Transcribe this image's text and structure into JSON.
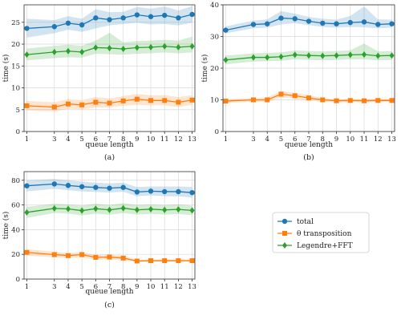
{
  "colors": {
    "total": "#1f77b4",
    "theta": "#ff7f0e",
    "legendre": "#2ca02c",
    "grid": "#d9d9d9",
    "frame": "#333333"
  },
  "legend": {
    "items": [
      {
        "key": "total",
        "label": "total",
        "marker": "circle"
      },
      {
        "key": "theta",
        "label": "θ transposition",
        "marker": "square"
      },
      {
        "key": "legendre",
        "label": "Legendre+FFT",
        "marker": "diamond"
      }
    ]
  },
  "chart_data": [
    {
      "type": "line",
      "caption": "(a)",
      "xlabel": "queue length",
      "ylabel": "time (s)",
      "xticks": [
        1,
        3,
        4,
        5,
        6,
        7,
        8,
        9,
        10,
        11,
        12,
        13
      ],
      "yticks": [
        0,
        5,
        10,
        15,
        20,
        25
      ],
      "xlim": [
        0.8,
        13.2
      ],
      "ylim": [
        0,
        29
      ],
      "grid": true,
      "x": [
        1,
        3,
        4,
        5,
        6,
        7,
        8,
        9,
        10,
        11,
        12,
        13
      ],
      "series": [
        {
          "key": "total",
          "name": "total",
          "values": [
            23.6,
            24.0,
            24.8,
            24.4,
            26.0,
            25.6,
            26.0,
            26.7,
            26.3,
            26.6,
            26.0,
            26.8
          ],
          "lower": [
            21.5,
            22.5,
            23.3,
            22.8,
            23.6,
            24.3,
            24.6,
            24.9,
            24.5,
            24.6,
            24.3,
            24.9
          ],
          "upper": [
            25.8,
            25.5,
            26.4,
            25.8,
            28.0,
            27.3,
            27.4,
            28.5,
            28.1,
            28.6,
            27.7,
            28.7
          ]
        },
        {
          "key": "theta",
          "name": "θ transposition",
          "values": [
            5.9,
            5.6,
            6.3,
            6.1,
            6.7,
            6.5,
            7.0,
            7.4,
            7.1,
            7.1,
            6.7,
            7.2
          ],
          "lower": [
            4.8,
            4.6,
            5.2,
            5.1,
            5.5,
            5.5,
            5.9,
            6.1,
            6.0,
            6.0,
            5.6,
            6.1
          ],
          "upper": [
            7.0,
            6.7,
            7.4,
            7.2,
            7.9,
            7.6,
            8.1,
            8.6,
            8.3,
            8.3,
            7.9,
            8.3
          ]
        },
        {
          "key": "legendre",
          "name": "Legendre+FFT",
          "values": [
            17.6,
            18.2,
            18.4,
            18.2,
            19.2,
            19.1,
            18.9,
            19.2,
            19.3,
            19.5,
            19.3,
            19.5
          ],
          "lower": [
            16.3,
            16.8,
            17.0,
            16.9,
            17.8,
            17.7,
            17.6,
            17.8,
            17.9,
            18.1,
            17.9,
            18.1
          ],
          "upper": [
            19.0,
            19.6,
            19.9,
            19.6,
            20.8,
            22.6,
            20.4,
            20.7,
            20.8,
            21.0,
            20.8,
            21.7
          ]
        }
      ]
    },
    {
      "type": "line",
      "caption": "(b)",
      "xlabel": "queue length",
      "ylabel": "time (s)",
      "xticks": [
        1,
        3,
        4,
        5,
        6,
        7,
        8,
        9,
        10,
        11,
        12,
        13
      ],
      "yticks": [
        0,
        10,
        20,
        30,
        40
      ],
      "xlim": [
        0.8,
        13.2
      ],
      "ylim": [
        0,
        40
      ],
      "grid": true,
      "x": [
        1,
        3,
        4,
        5,
        6,
        7,
        8,
        9,
        10,
        11,
        12,
        13
      ],
      "series": [
        {
          "key": "total",
          "name": "total",
          "values": [
            32.0,
            33.8,
            34.0,
            35.8,
            35.6,
            34.8,
            34.2,
            34.0,
            34.4,
            34.6,
            33.8,
            34.0
          ],
          "lower": [
            31.0,
            32.6,
            32.8,
            33.8,
            34.2,
            33.6,
            33.0,
            32.8,
            33.0,
            32.9,
            32.6,
            32.8
          ],
          "upper": [
            33.2,
            35.0,
            35.4,
            38.0,
            37.2,
            36.2,
            35.6,
            35.3,
            36.5,
            39.5,
            35.4,
            35.3
          ]
        },
        {
          "key": "theta",
          "name": "θ transposition",
          "values": [
            9.6,
            10.0,
            10.0,
            11.8,
            11.3,
            10.6,
            10.0,
            9.7,
            9.8,
            9.7,
            9.8,
            9.8
          ],
          "lower": [
            9.0,
            9.4,
            9.4,
            10.8,
            10.4,
            9.8,
            9.4,
            9.2,
            9.3,
            9.2,
            9.3,
            9.3
          ],
          "upper": [
            10.2,
            10.6,
            10.8,
            12.8,
            12.2,
            11.5,
            10.6,
            10.2,
            10.3,
            10.2,
            10.3,
            10.3
          ]
        },
        {
          "key": "legendre",
          "name": "Legendre+FFT",
          "values": [
            22.6,
            23.4,
            23.4,
            23.6,
            24.2,
            24.0,
            23.9,
            24.0,
            24.2,
            24.3,
            23.9,
            24.0
          ],
          "lower": [
            21.2,
            22.1,
            22.2,
            22.3,
            22.8,
            22.6,
            22.5,
            22.6,
            22.8,
            22.8,
            22.5,
            22.6
          ],
          "upper": [
            24.0,
            24.7,
            24.8,
            25.0,
            25.6,
            25.4,
            25.3,
            25.4,
            25.6,
            27.8,
            25.3,
            25.4
          ]
        }
      ]
    },
    {
      "type": "line",
      "caption": "(c)",
      "xlabel": "queue length",
      "ylabel": "time (s)",
      "xticks": [
        1,
        3,
        4,
        5,
        6,
        7,
        8,
        9,
        10,
        11,
        12,
        13
      ],
      "yticks": [
        0,
        20,
        40,
        60,
        80
      ],
      "xlim": [
        0.8,
        13.2
      ],
      "ylim": [
        0,
        87
      ],
      "grid": true,
      "x": [
        1,
        3,
        4,
        5,
        6,
        7,
        8,
        9,
        10,
        11,
        12,
        13
      ],
      "series": [
        {
          "key": "total",
          "name": "total",
          "values": [
            75.5,
            77.0,
            75.8,
            74.8,
            74.2,
            73.6,
            74.2,
            70.5,
            71.2,
            70.8,
            70.8,
            70.0
          ],
          "lower": [
            71.0,
            73.0,
            72.0,
            71.0,
            70.5,
            70.0,
            70.8,
            67.0,
            67.8,
            67.0,
            67.0,
            66.0
          ],
          "upper": [
            80.0,
            81.0,
            80.0,
            79.0,
            78.0,
            77.5,
            78.0,
            74.5,
            75.0,
            75.0,
            75.0,
            74.5
          ]
        },
        {
          "key": "theta",
          "name": "θ transposition",
          "values": [
            21.6,
            19.8,
            19.0,
            19.8,
            17.6,
            17.8,
            17.0,
            14.6,
            14.9,
            14.9,
            14.9,
            14.9
          ],
          "lower": [
            19.0,
            17.5,
            17.0,
            17.5,
            15.6,
            15.8,
            15.0,
            13.8,
            14.0,
            14.0,
            14.0,
            14.0
          ],
          "upper": [
            24.0,
            22.2,
            21.0,
            22.0,
            19.6,
            19.8,
            19.0,
            15.6,
            15.8,
            15.8,
            15.8,
            15.8
          ]
        },
        {
          "key": "legendre",
          "name": "Legendre+FFT",
          "values": [
            54.0,
            57.2,
            56.8,
            55.4,
            57.0,
            56.0,
            57.4,
            56.0,
            56.6,
            56.0,
            56.4,
            55.6
          ],
          "lower": [
            49.5,
            53.5,
            53.0,
            51.5,
            53.0,
            52.0,
            53.5,
            52.2,
            52.8,
            52.2,
            52.6,
            51.8
          ],
          "upper": [
            58.5,
            61.0,
            60.5,
            59.5,
            61.0,
            60.0,
            61.5,
            60.0,
            60.5,
            60.0,
            60.5,
            59.5
          ]
        }
      ]
    }
  ]
}
